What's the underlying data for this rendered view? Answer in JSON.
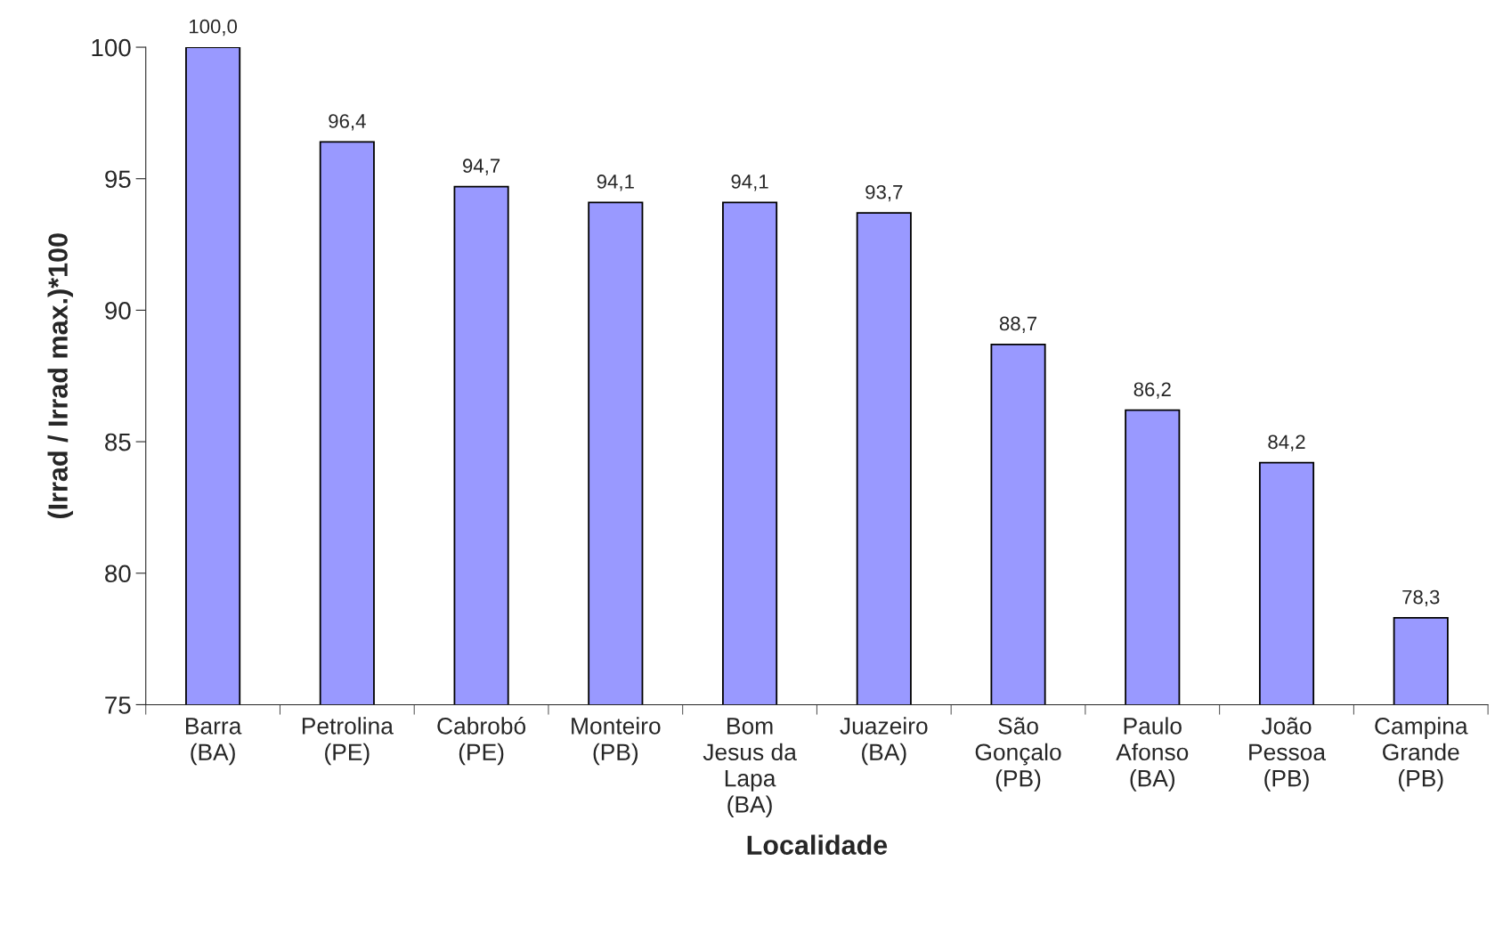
{
  "chart_data": {
    "type": "bar",
    "xlabel": "Localidade",
    "ylabel": "(Irrad / Irrad max.)*100",
    "categories": [
      "Barra\n(BA)",
      "Petrolina\n(PE)",
      "Cabrobó\n(PE)",
      "Monteiro\n(PB)",
      "Bom\nJesus da\nLapa\n(BA)",
      "Juazeiro\n(BA)",
      "São\nGonçalo\n(PB)",
      "Paulo\nAfonso\n(BA)",
      "João\nPessoa\n(PB)",
      "Campina\nGrande\n(PB)"
    ],
    "values": [
      100.0,
      96.4,
      94.7,
      94.1,
      94.1,
      93.7,
      88.7,
      86.2,
      84.2,
      78.3
    ],
    "value_labels": [
      "100,0",
      "96,4",
      "94,7",
      "94,1",
      "94,1",
      "93,7",
      "88,7",
      "86,2",
      "84,2",
      "78,3"
    ],
    "color": "#9999ff",
    "ylim": [
      75,
      100
    ],
    "yticks": [
      75,
      80,
      85,
      90,
      95,
      100
    ],
    "grid": false,
    "legend": false
  }
}
